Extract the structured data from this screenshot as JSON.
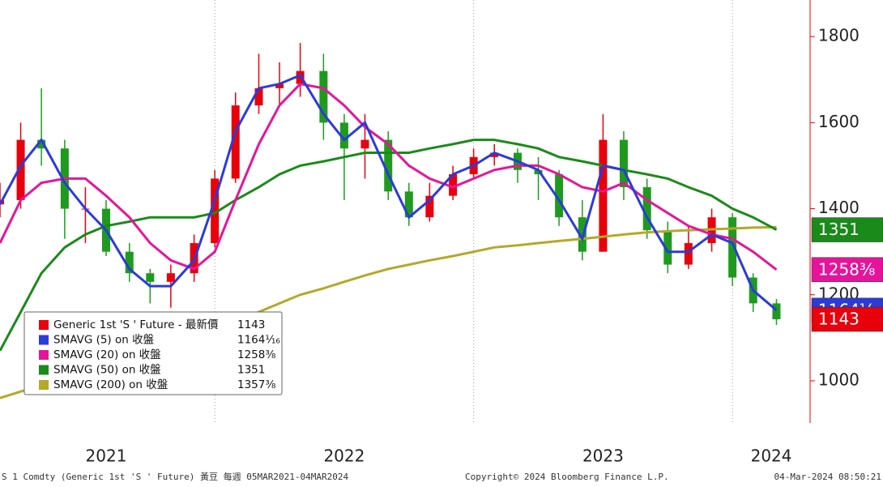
{
  "chart_data": {
    "type": "candlestick",
    "name": "Generic 1st 'S ' Future - 最新價",
    "last_label": "1143",
    "up_color": "#e8000b",
    "down_color": "#1f9a1f",
    "x": [
      2021.17,
      2021.25,
      2021.33,
      2021.42,
      2021.5,
      2021.58,
      2021.67,
      2021.75,
      2021.83,
      2021.92,
      2022.0,
      2022.08,
      2022.17,
      2022.25,
      2022.33,
      2022.42,
      2022.5,
      2022.58,
      2022.67,
      2022.75,
      2022.83,
      2022.92,
      2023.0,
      2023.08,
      2023.17,
      2023.25,
      2023.33,
      2023.42,
      2023.5,
      2023.58,
      2023.67,
      2023.75,
      2023.83,
      2023.92,
      2024.0,
      2024.08,
      2024.17
    ],
    "open": [
      1410,
      1420,
      1560,
      1540,
      1400,
      1400,
      1300,
      1250,
      1230,
      1250,
      1320,
      1470,
      1640,
      1680,
      1690,
      1720,
      1600,
      1540,
      1560,
      1440,
      1380,
      1430,
      1480,
      1520,
      1530,
      1490,
      1480,
      1380,
      1300,
      1560,
      1450,
      1350,
      1270,
      1320,
      1380,
      1240,
      1180
    ],
    "high": [
      1460,
      1600,
      1680,
      1560,
      1450,
      1420,
      1320,
      1260,
      1270,
      1340,
      1490,
      1670,
      1760,
      1740,
      1785,
      1760,
      1620,
      1620,
      1580,
      1460,
      1460,
      1500,
      1540,
      1550,
      1540,
      1520,
      1490,
      1420,
      1620,
      1580,
      1470,
      1370,
      1360,
      1400,
      1390,
      1250,
      1190
    ],
    "low": [
      1380,
      1400,
      1500,
      1330,
      1320,
      1290,
      1230,
      1180,
      1170,
      1230,
      1310,
      1460,
      1620,
      1640,
      1660,
      1560,
      1420,
      1470,
      1420,
      1360,
      1370,
      1420,
      1470,
      1500,
      1460,
      1420,
      1360,
      1280,
      1300,
      1420,
      1330,
      1250,
      1260,
      1300,
      1220,
      1160,
      1130
    ],
    "close": [
      1420,
      1560,
      1540,
      1400,
      1400,
      1300,
      1250,
      1230,
      1250,
      1320,
      1470,
      1640,
      1680,
      1690,
      1720,
      1600,
      1540,
      1560,
      1440,
      1380,
      1430,
      1480,
      1520,
      1530,
      1490,
      1480,
      1380,
      1300,
      1560,
      1450,
      1350,
      1270,
      1320,
      1380,
      1240,
      1180,
      1143
    ],
    "series": [
      {
        "name": "SMAVG (5)  on 收盤",
        "color": "#2b3bd9",
        "last_label": "1164¹⁄₁₆",
        "values": [
          1410,
          1500,
          1560,
          1460,
          1400,
          1350,
          1260,
          1220,
          1220,
          1280,
          1420,
          1580,
          1680,
          1690,
          1710,
          1620,
          1560,
          1600,
          1480,
          1380,
          1420,
          1480,
          1500,
          1530,
          1510,
          1490,
          1420,
          1330,
          1500,
          1490,
          1380,
          1300,
          1300,
          1340,
          1320,
          1210,
          1164.0625
        ]
      },
      {
        "name": "SMAVG (20)  on 收盤",
        "color": "#e6149b",
        "last_label": "1258³⁄₈",
        "values": [
          1320,
          1420,
          1460,
          1470,
          1470,
          1430,
          1380,
          1320,
          1280,
          1260,
          1300,
          1420,
          1550,
          1640,
          1690,
          1680,
          1640,
          1590,
          1550,
          1500,
          1470,
          1450,
          1470,
          1490,
          1500,
          1500,
          1480,
          1450,
          1440,
          1460,
          1420,
          1390,
          1360,
          1340,
          1330,
          1300,
          1258.375
        ]
      },
      {
        "name": "SMAVG (50)  on 收盤",
        "color": "#1a8a1a",
        "last_label": "1351",
        "values": [
          1070,
          1160,
          1250,
          1310,
          1340,
          1360,
          1370,
          1380,
          1380,
          1380,
          1390,
          1420,
          1450,
          1480,
          1500,
          1510,
          1520,
          1530,
          1530,
          1530,
          1540,
          1550,
          1560,
          1560,
          1550,
          1540,
          1520,
          1510,
          1500,
          1490,
          1480,
          1470,
          1450,
          1430,
          1400,
          1380,
          1351
        ]
      },
      {
        "name": "SMAVG (200)  on 收盤",
        "color": "#b5a82a",
        "last_label": "1357³⁄₈",
        "values": [
          960,
          975,
          990,
          1010,
          1030,
          1050,
          1065,
          1080,
          1095,
          1110,
          1125,
          1140,
          1160,
          1180,
          1200,
          1215,
          1230,
          1245,
          1260,
          1270,
          1280,
          1290,
          1300,
          1310,
          1315,
          1320,
          1325,
          1330,
          1335,
          1340,
          1345,
          1348,
          1350,
          1352,
          1354,
          1356,
          1357.375
        ]
      }
    ],
    "xlim": [
      2021.17,
      2024.3
    ],
    "xticks": [
      {
        "value": 2021.58,
        "label": "2021"
      },
      {
        "value": 2022.5,
        "label": "2022"
      },
      {
        "value": 2023.5,
        "label": "2023"
      },
      {
        "value": 2024.15,
        "label": "2024"
      }
    ],
    "xgrid": [
      2022.0,
      2023.0,
      2024.0
    ],
    "ylim": [
      902,
      1885
    ],
    "yticks": [
      1000,
      1200,
      1400,
      1600,
      1800
    ],
    "source": "S 1 Comdty (Generic 1st 'S ' Future) 黃豆  每週 05MAR2021-04MAR2024",
    "copyright": "Copyright© 2024 Bloomberg Finance L.P.",
    "timestamp": "04-Mar-2024 08:50:21"
  }
}
